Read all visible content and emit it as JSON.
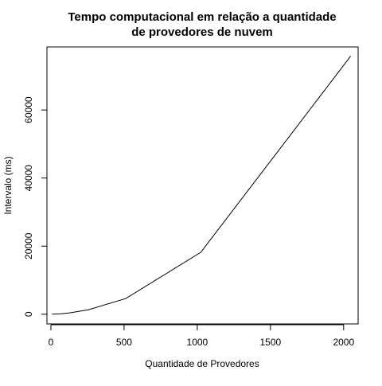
{
  "chart_data": {
    "type": "line",
    "title_lines": [
      "Tempo computacional em relação a quantidade",
      "de provedores de nuvem"
    ],
    "xlabel": "Quantidade de Provedores",
    "ylabel": "Intervalo (ms)",
    "xlim": [
      -27,
      2099
    ],
    "ylim": [
      -2850,
      78500
    ],
    "x_ticks": [
      0,
      500,
      1000,
      1500,
      2000
    ],
    "y_ticks": [
      0,
      20000,
      40000,
      60000
    ],
    "grid": false,
    "series": [
      {
        "x": [
          8,
          64,
          128,
          256,
          512,
          1024,
          2048
        ],
        "y": [
          10,
          100,
          400,
          1300,
          4600,
          18200,
          75800
        ]
      }
    ],
    "colors": {
      "line": "#000000",
      "axes": "#000000"
    }
  }
}
